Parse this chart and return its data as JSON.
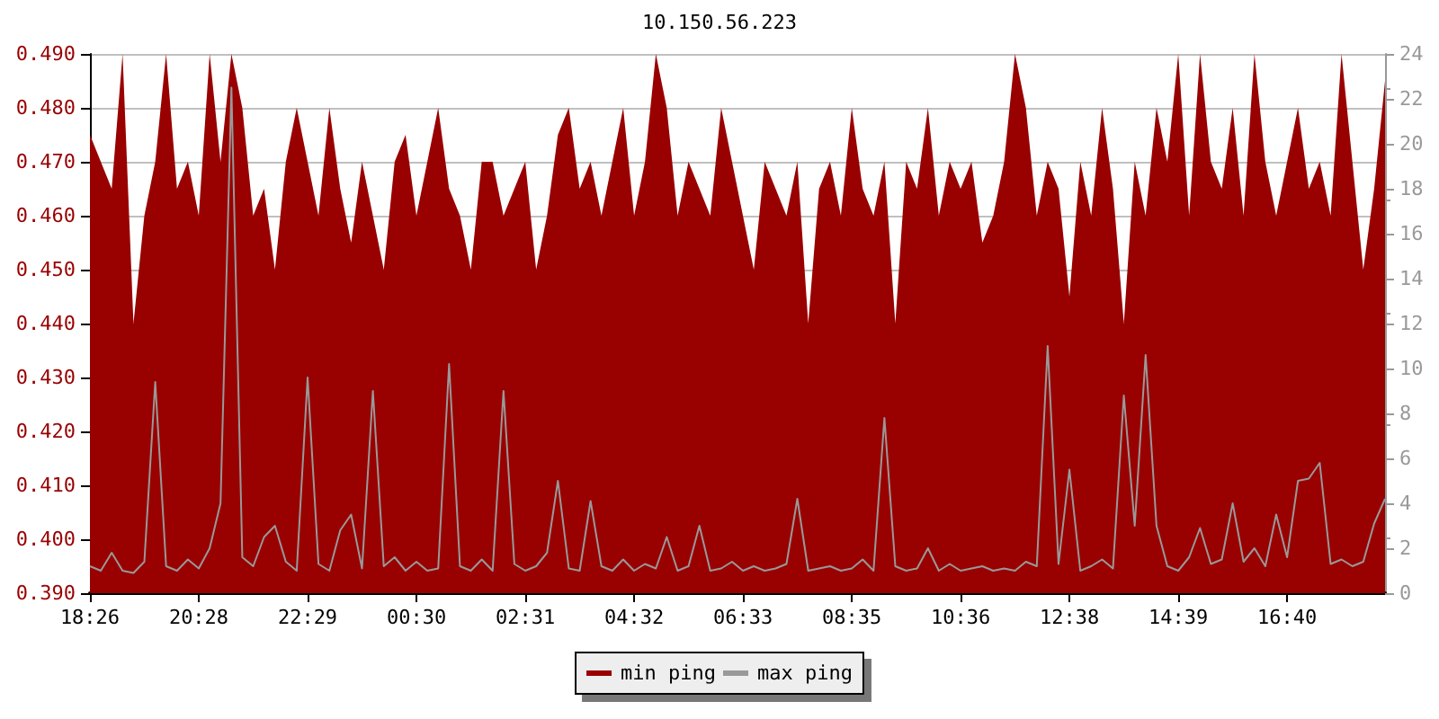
{
  "chart_data": {
    "type": "area",
    "title": "10.150.56.223",
    "categories": [
      "18:26",
      null,
      null,
      null,
      null,
      null,
      null,
      null,
      null,
      null,
      "20:28",
      null,
      null,
      null,
      null,
      null,
      null,
      null,
      null,
      null,
      "22:29",
      null,
      null,
      null,
      null,
      null,
      null,
      null,
      null,
      null,
      "00:30",
      null,
      null,
      null,
      null,
      null,
      null,
      null,
      null,
      null,
      "02:31",
      null,
      null,
      null,
      null,
      null,
      null,
      null,
      null,
      null,
      "04:32",
      null,
      null,
      null,
      null,
      null,
      null,
      null,
      null,
      null,
      "06:33",
      null,
      null,
      null,
      null,
      null,
      null,
      null,
      null,
      null,
      "08:35",
      null,
      null,
      null,
      null,
      null,
      null,
      null,
      null,
      null,
      "10:36",
      null,
      null,
      null,
      null,
      null,
      null,
      null,
      null,
      null,
      "12:38",
      null,
      null,
      null,
      null,
      null,
      null,
      null,
      null,
      null,
      "14:39",
      null,
      null,
      null,
      null,
      null,
      null,
      null,
      null,
      null,
      "16:40",
      null,
      null,
      null,
      null,
      null,
      null,
      null,
      null,
      null
    ],
    "series": [
      {
        "name": "min ping",
        "color": "#990000",
        "values": [
          0.475,
          0.47,
          0.465,
          0.49,
          0.44,
          0.46,
          0.47,
          0.49,
          0.465,
          0.47,
          0.46,
          0.49,
          0.47,
          0.49,
          0.48,
          0.46,
          0.465,
          0.45,
          0.47,
          0.48,
          0.47,
          0.46,
          0.48,
          0.465,
          0.455,
          0.47,
          0.46,
          0.45,
          0.47,
          0.475,
          0.46,
          0.47,
          0.48,
          0.465,
          0.46,
          0.45,
          0.47,
          0.47,
          0.46,
          0.465,
          0.47,
          0.45,
          0.46,
          0.475,
          0.48,
          0.465,
          0.47,
          0.46,
          0.47,
          0.48,
          0.46,
          0.47,
          0.49,
          0.48,
          0.46,
          0.47,
          0.465,
          0.46,
          0.48,
          0.47,
          0.46,
          0.45,
          0.47,
          0.465,
          0.46,
          0.47,
          0.44,
          0.465,
          0.47,
          0.46,
          0.48,
          0.465,
          0.46,
          0.47,
          0.44,
          0.47,
          0.465,
          0.48,
          0.46,
          0.47,
          0.465,
          0.47,
          0.455,
          0.46,
          0.47,
          0.49,
          0.48,
          0.46,
          0.47,
          0.465,
          0.445,
          0.47,
          0.46,
          0.48,
          0.465,
          0.44,
          0.47,
          0.46,
          0.48,
          0.47,
          0.49,
          0.46,
          0.49,
          0.47,
          0.465,
          0.48,
          0.46,
          0.49,
          0.47,
          0.46,
          0.47,
          0.48,
          0.465,
          0.47,
          0.46,
          0.49,
          0.47,
          0.45,
          0.465,
          0.485
        ]
      },
      {
        "name": "max ping",
        "type": "line",
        "axis": "y2",
        "color": "#999999",
        "values": [
          1.2,
          1.0,
          1.8,
          1.0,
          0.9,
          1.4,
          9.4,
          1.2,
          1.0,
          1.5,
          1.1,
          2.0,
          4.0,
          22.5,
          1.6,
          1.2,
          2.5,
          3.0,
          1.4,
          1.0,
          9.6,
          1.3,
          1.0,
          2.8,
          3.5,
          1.1,
          9.0,
          1.2,
          1.6,
          1.0,
          1.4,
          1.0,
          1.1,
          10.2,
          1.2,
          1.0,
          1.5,
          1.0,
          9.0,
          1.3,
          1.0,
          1.2,
          1.8,
          5.0,
          1.1,
          1.0,
          4.1,
          1.2,
          1.0,
          1.5,
          1.0,
          1.3,
          1.1,
          2.5,
          1.0,
          1.2,
          3.0,
          1.0,
          1.1,
          1.4,
          1.0,
          1.2,
          1.0,
          1.1,
          1.3,
          4.2,
          1.0,
          1.1,
          1.2,
          1.0,
          1.1,
          1.5,
          1.0,
          7.8,
          1.2,
          1.0,
          1.1,
          2.0,
          1.0,
          1.3,
          1.0,
          1.1,
          1.2,
          1.0,
          1.1,
          1.0,
          1.4,
          1.2,
          11.0,
          1.3,
          5.5,
          1.0,
          1.2,
          1.5,
          1.1,
          8.8,
          3.0,
          10.6,
          3.0,
          1.2,
          1.0,
          1.6,
          2.9,
          1.3,
          1.5,
          4.0,
          1.4,
          2.0,
          1.2,
          3.5,
          1.6,
          5.0,
          5.1,
          5.8,
          1.3,
          1.5,
          1.2,
          1.4,
          3.1,
          4.2
        ]
      }
    ],
    "ylim": [
      0.39,
      0.49
    ],
    "yticks": [
      {
        "value": 0.39,
        "label": "0.390"
      },
      {
        "value": 0.4,
        "label": "0.400"
      },
      {
        "value": 0.41,
        "label": "0.410"
      },
      {
        "value": 0.42,
        "label": "0.420"
      },
      {
        "value": 0.43,
        "label": "0.430"
      },
      {
        "value": 0.44,
        "label": "0.440"
      },
      {
        "value": 0.45,
        "label": "0.450"
      },
      {
        "value": 0.46,
        "label": "0.460"
      },
      {
        "value": 0.47,
        "label": "0.470"
      },
      {
        "value": 0.48,
        "label": "0.480"
      },
      {
        "value": 0.49,
        "label": "0.490"
      }
    ],
    "y2lim": [
      0,
      24
    ],
    "y2ticks": [
      0,
      2,
      4,
      6,
      8,
      10,
      12,
      14,
      16,
      18,
      20,
      22,
      24
    ],
    "grid": "y",
    "legend": "bottom",
    "marker": "none",
    "line_style": "solid"
  }
}
